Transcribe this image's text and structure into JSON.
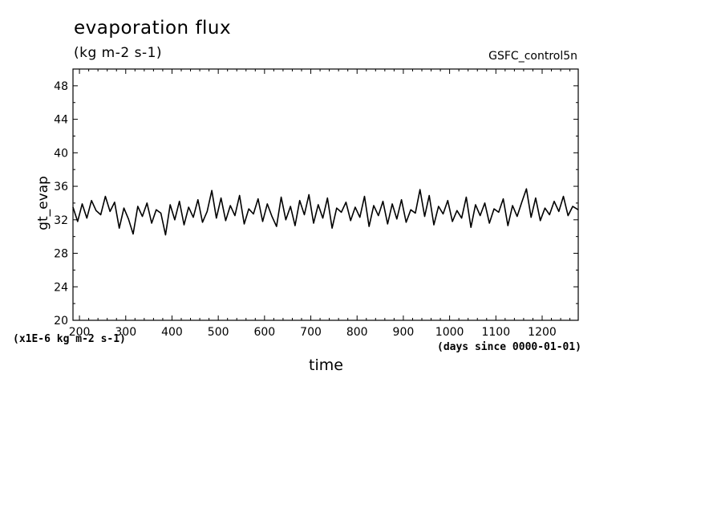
{
  "chart_data": {
    "type": "line",
    "title": "evaporation flux",
    "units": "(kg m-2 s-1)",
    "source_label": "GSFC_control5n",
    "ylabel": "gt_evap",
    "xlabel": "time",
    "scale_note": "(x1E-6 kg m-2 s-1)",
    "x_units": "(days since 0000-01-01)",
    "xlim": [
      186,
      1278
    ],
    "ylim": [
      20,
      50
    ],
    "x_ticks": [
      200,
      300,
      400,
      500,
      600,
      700,
      800,
      900,
      1000,
      1100,
      1200
    ],
    "y_ticks": [
      20,
      24,
      28,
      32,
      36,
      40,
      44,
      48
    ],
    "grid": false,
    "series": [
      {
        "x": [
          186,
          196,
          206,
          216,
          226,
          236,
          246,
          256,
          266,
          276,
          286,
          296,
          306,
          316,
          326,
          336,
          346,
          356,
          366,
          376,
          386,
          396,
          406,
          416,
          426,
          436,
          446,
          456,
          466,
          476,
          486,
          496,
          506,
          516,
          526,
          536,
          546,
          556,
          566,
          576,
          586,
          596,
          606,
          616,
          626,
          636,
          646,
          656,
          666,
          676,
          686,
          696,
          706,
          716,
          726,
          736,
          746,
          756,
          766,
          776,
          786,
          796,
          806,
          816,
          826,
          836,
          846,
          856,
          866,
          876,
          886,
          896,
          906,
          916,
          926,
          936,
          946,
          956,
          966,
          976,
          986,
          996,
          1006,
          1016,
          1026,
          1036,
          1046,
          1056,
          1066,
          1076,
          1086,
          1096,
          1106,
          1116,
          1126,
          1136,
          1146,
          1156,
          1166,
          1176,
          1186,
          1196,
          1206,
          1216,
          1226,
          1236,
          1246,
          1256,
          1266,
          1278
        ],
        "values": [
          33.5,
          31.8,
          33.9,
          32.2,
          34.3,
          33.1,
          32.6,
          34.8,
          33.0,
          34.1,
          31.0,
          33.4,
          32.1,
          30.3,
          33.6,
          32.4,
          34.0,
          31.6,
          33.2,
          32.8,
          30.2,
          33.8,
          32.0,
          34.2,
          31.4,
          33.5,
          32.3,
          34.4,
          31.7,
          33.0,
          35.5,
          32.2,
          34.6,
          31.9,
          33.7,
          32.5,
          34.9,
          31.5,
          33.3,
          32.7,
          34.5,
          31.8,
          33.9,
          32.4,
          31.2,
          34.7,
          32.0,
          33.6,
          31.3,
          34.3,
          32.6,
          35.0,
          31.6,
          33.8,
          32.2,
          34.6,
          31.0,
          33.4,
          32.9,
          34.1,
          31.9,
          33.5,
          32.3,
          34.8,
          31.2,
          33.7,
          32.5,
          34.2,
          31.5,
          33.9,
          32.1,
          34.4,
          31.7,
          33.2,
          32.8,
          35.6,
          32.4,
          34.9,
          31.4,
          33.6,
          32.7,
          34.3,
          31.8,
          33.1,
          32.2,
          34.7,
          31.1,
          33.8,
          32.5,
          34.0,
          31.6,
          33.3,
          32.9,
          34.5,
          31.3,
          33.7,
          32.4,
          34.1,
          35.7,
          32.3,
          34.6,
          31.9,
          33.4,
          32.6,
          34.2,
          33.0,
          34.8,
          32.5,
          33.6,
          33.2
        ]
      }
    ]
  }
}
